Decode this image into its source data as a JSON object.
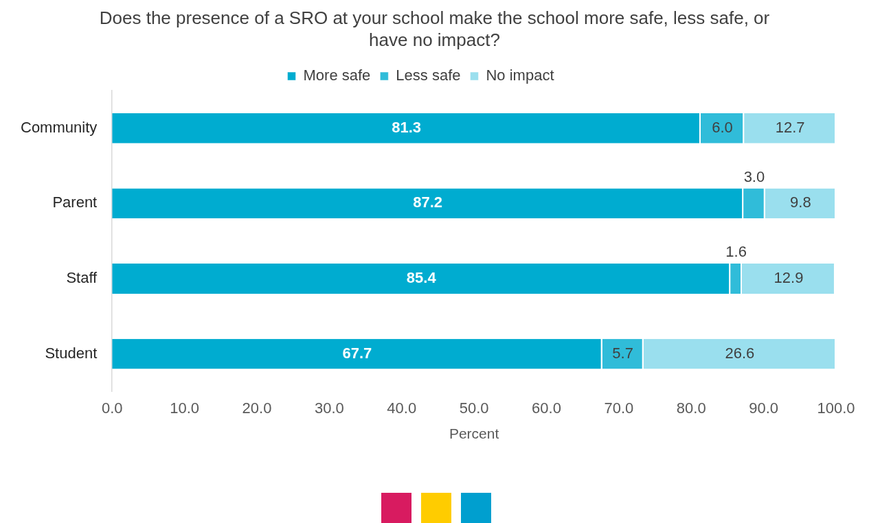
{
  "chart_data": {
    "type": "bar",
    "orientation": "horizontal",
    "stacked": true,
    "title": "Does the presence of a SRO at your school make the school more safe, less safe, or have no impact?",
    "xlabel": "Percent",
    "categories": [
      "Community",
      "Parent",
      "Staff",
      "Student"
    ],
    "series": [
      {
        "name": "More safe",
        "color": "#00acd0",
        "values": [
          81.3,
          87.2,
          85.4,
          67.7
        ],
        "value_labels": [
          "81.3",
          "87.2",
          "85.4",
          "67.7"
        ]
      },
      {
        "name": "Less safe",
        "color": "#30bcd9",
        "values": [
          6.0,
          3.0,
          1.6,
          5.7
        ],
        "value_labels": [
          "6.0",
          "3.0",
          "1.6",
          "5.7"
        ]
      },
      {
        "name": "No impact",
        "color": "#9adfee",
        "values": [
          12.7,
          9.8,
          12.9,
          26.6
        ],
        "value_labels": [
          "12.7",
          "9.8",
          "12.9",
          "26.6"
        ]
      }
    ],
    "xlim": [
      0,
      100
    ],
    "xticks": [
      {
        "value": 0,
        "label": "0.0"
      },
      {
        "value": 10,
        "label": "10.0"
      },
      {
        "value": 20,
        "label": "20.0"
      },
      {
        "value": 30,
        "label": "30.0"
      },
      {
        "value": 40,
        "label": "40.0"
      },
      {
        "value": 50,
        "label": "50.0"
      },
      {
        "value": 60,
        "label": "60.0"
      },
      {
        "value": 70,
        "label": "70.0"
      },
      {
        "value": 80,
        "label": "80.0"
      },
      {
        "value": 90,
        "label": "90.0"
      },
      {
        "value": 100,
        "label": "100.0"
      }
    ],
    "grid": false,
    "legend": "top"
  }
}
